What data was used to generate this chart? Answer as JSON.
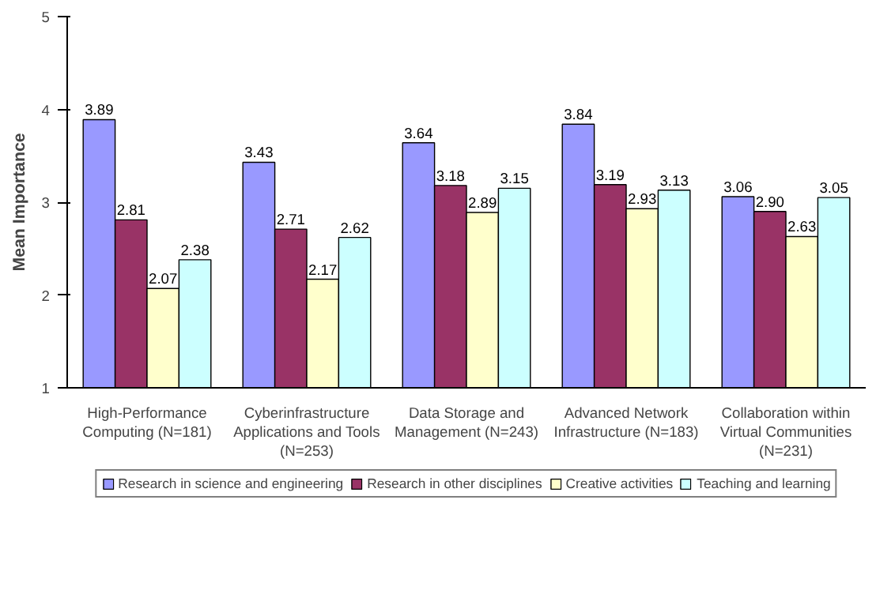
{
  "chart_data": {
    "type": "bar",
    "ylabel": "Mean Importance",
    "ylim": [
      1,
      5
    ],
    "yticks": [
      1,
      2,
      3,
      4,
      5
    ],
    "grid": false,
    "legend": "bottom",
    "categories": [
      "High-Performance Computing (N=181)",
      "Cyberinfrastructure Applications and Tools (N=253)",
      "Data Storage and Management (N=243)",
      "Advanced Network Infrastructure (N=183)",
      "Collaboration within Virtual Communities (N=231)"
    ],
    "series": [
      {
        "name": "Research in science and engineering",
        "color": "#9999ff",
        "values": [
          3.89,
          3.43,
          3.64,
          3.84,
          3.06
        ],
        "value_labels": [
          "3.89",
          "3.43",
          "3.64",
          "3.84",
          "3.06"
        ]
      },
      {
        "name": "Research in other disciplines",
        "color": "#993366",
        "values": [
          2.81,
          2.71,
          3.18,
          3.19,
          2.9
        ],
        "value_labels": [
          "2.81",
          "2.71",
          "3.18",
          "3.19",
          "2.90"
        ]
      },
      {
        "name": "Creative activities",
        "color": "#ffffcc",
        "values": [
          2.07,
          2.17,
          2.89,
          2.93,
          2.63
        ],
        "value_labels": [
          "2.07",
          "2.17",
          "2.89",
          "2.93",
          "2.63"
        ]
      },
      {
        "name": "Teaching and learning",
        "color": "#ccffff",
        "values": [
          2.38,
          2.62,
          3.15,
          3.13,
          3.05
        ],
        "value_labels": [
          "2.38",
          "2.62",
          "3.15",
          "3.13",
          "3.05"
        ]
      }
    ]
  }
}
